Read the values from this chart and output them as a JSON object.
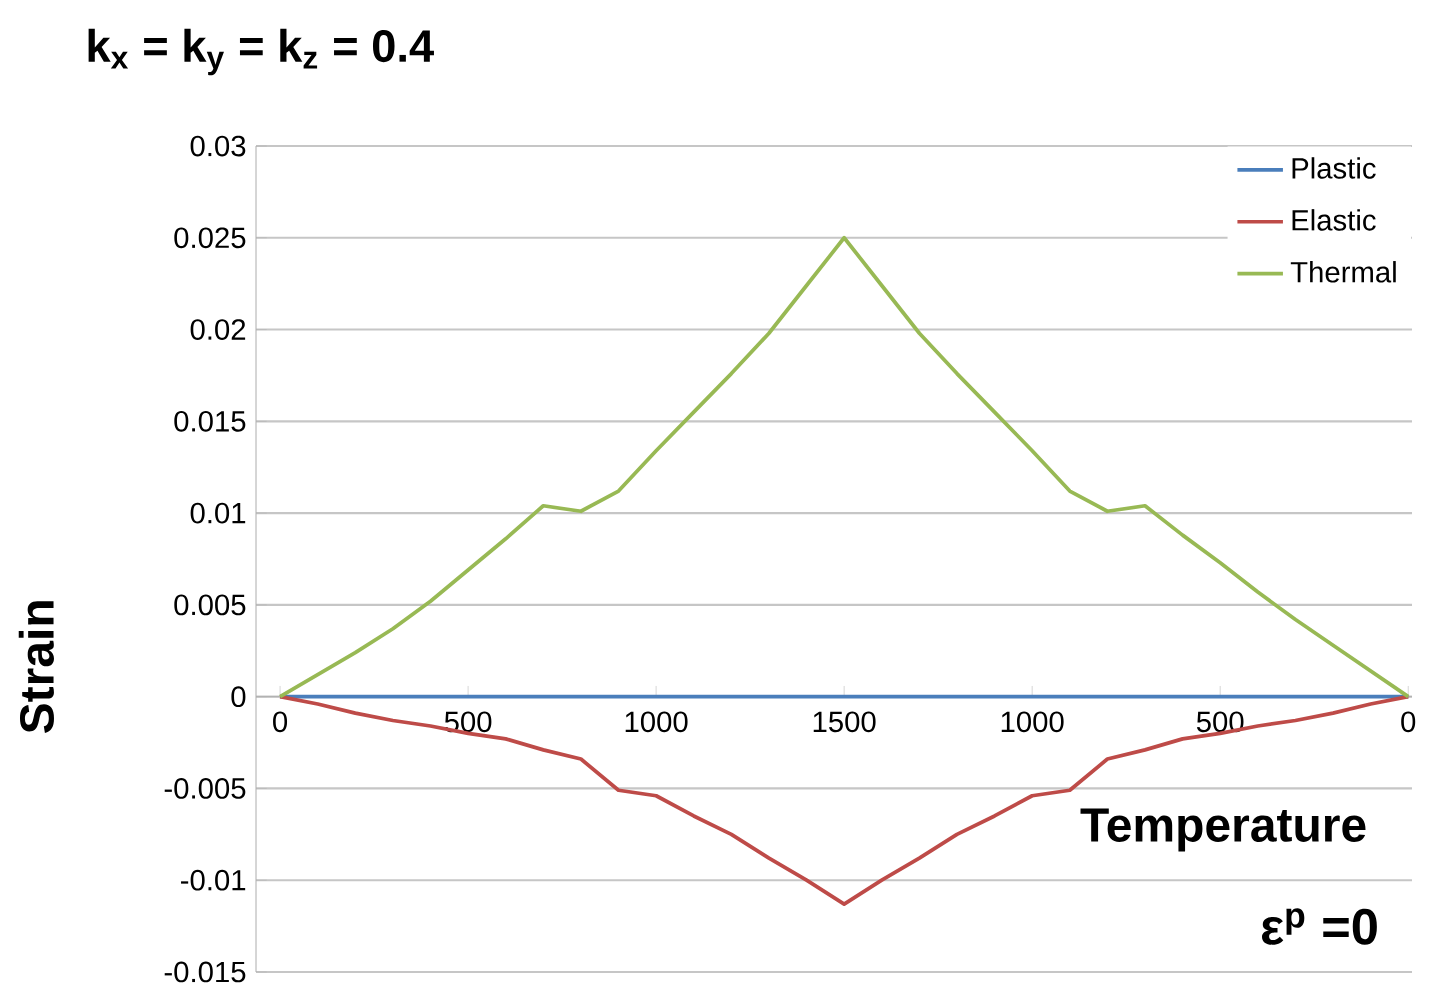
{
  "chart_data": {
    "type": "line",
    "title": "k$_{x}$ = k$_{y}$ = k$_{z}$ = 0.4",
    "xlabel": "Temperature",
    "ylabel": "Strain",
    "annotations": [
      "ε$^{p}$ =0"
    ],
    "categories": [
      "0",
      null,
      null,
      null,
      null,
      "500",
      null,
      null,
      null,
      null,
      "1000",
      null,
      null,
      null,
      null,
      "1500",
      null,
      null,
      null,
      null,
      "1000",
      null,
      null,
      null,
      null,
      "500",
      null,
      null,
      null,
      null,
      "0"
    ],
    "ylim": [
      -0.015,
      0.03
    ],
    "yticks": [
      -0.015,
      -0.01,
      -0.005,
      0,
      0.005,
      0.01,
      0.015,
      0.02,
      0.025,
      0.03
    ],
    "grid": "y",
    "legend": "top right",
    "marker": "none",
    "line_style": "solid",
    "series": [
      {
        "name": "Plastic",
        "color": "#4a7ebb",
        "values": [
          0,
          0,
          0,
          0,
          0,
          0,
          0,
          0,
          0,
          0,
          0,
          0,
          0,
          0,
          0,
          0,
          0,
          0,
          0,
          0,
          0,
          0,
          0,
          0,
          0,
          0,
          0,
          0,
          0,
          0,
          0
        ]
      },
      {
        "name": "Elastic",
        "color": "#be4b48",
        "values": [
          0,
          -0.0004,
          -0.0009,
          -0.0013,
          -0.0016,
          -0.002,
          -0.0023,
          -0.0029,
          -0.0034,
          -0.0051,
          -0.0054,
          -0.0065,
          -0.0075,
          -0.0088,
          -0.01,
          -0.0113,
          -0.01,
          -0.0088,
          -0.0075,
          -0.0065,
          -0.0054,
          -0.0051,
          -0.0034,
          -0.0029,
          -0.0023,
          -0.002,
          -0.0016,
          -0.0013,
          -0.0009,
          -0.0004,
          0
        ]
      },
      {
        "name": "Thermal",
        "color": "#98b954",
        "values": [
          0,
          0.0012,
          0.0024,
          0.0037,
          0.0052,
          0.0069,
          0.0086,
          0.0104,
          0.0101,
          0.0112,
          0.0134,
          0.0155,
          0.0176,
          0.0198,
          0.0224,
          0.025,
          0.0224,
          0.0198,
          0.0176,
          0.0155,
          0.0134,
          0.0112,
          0.0101,
          0.0104,
          0.0088,
          0.0073,
          0.0057,
          0.0042,
          0.0028,
          0.0014,
          0
        ]
      }
    ]
  }
}
